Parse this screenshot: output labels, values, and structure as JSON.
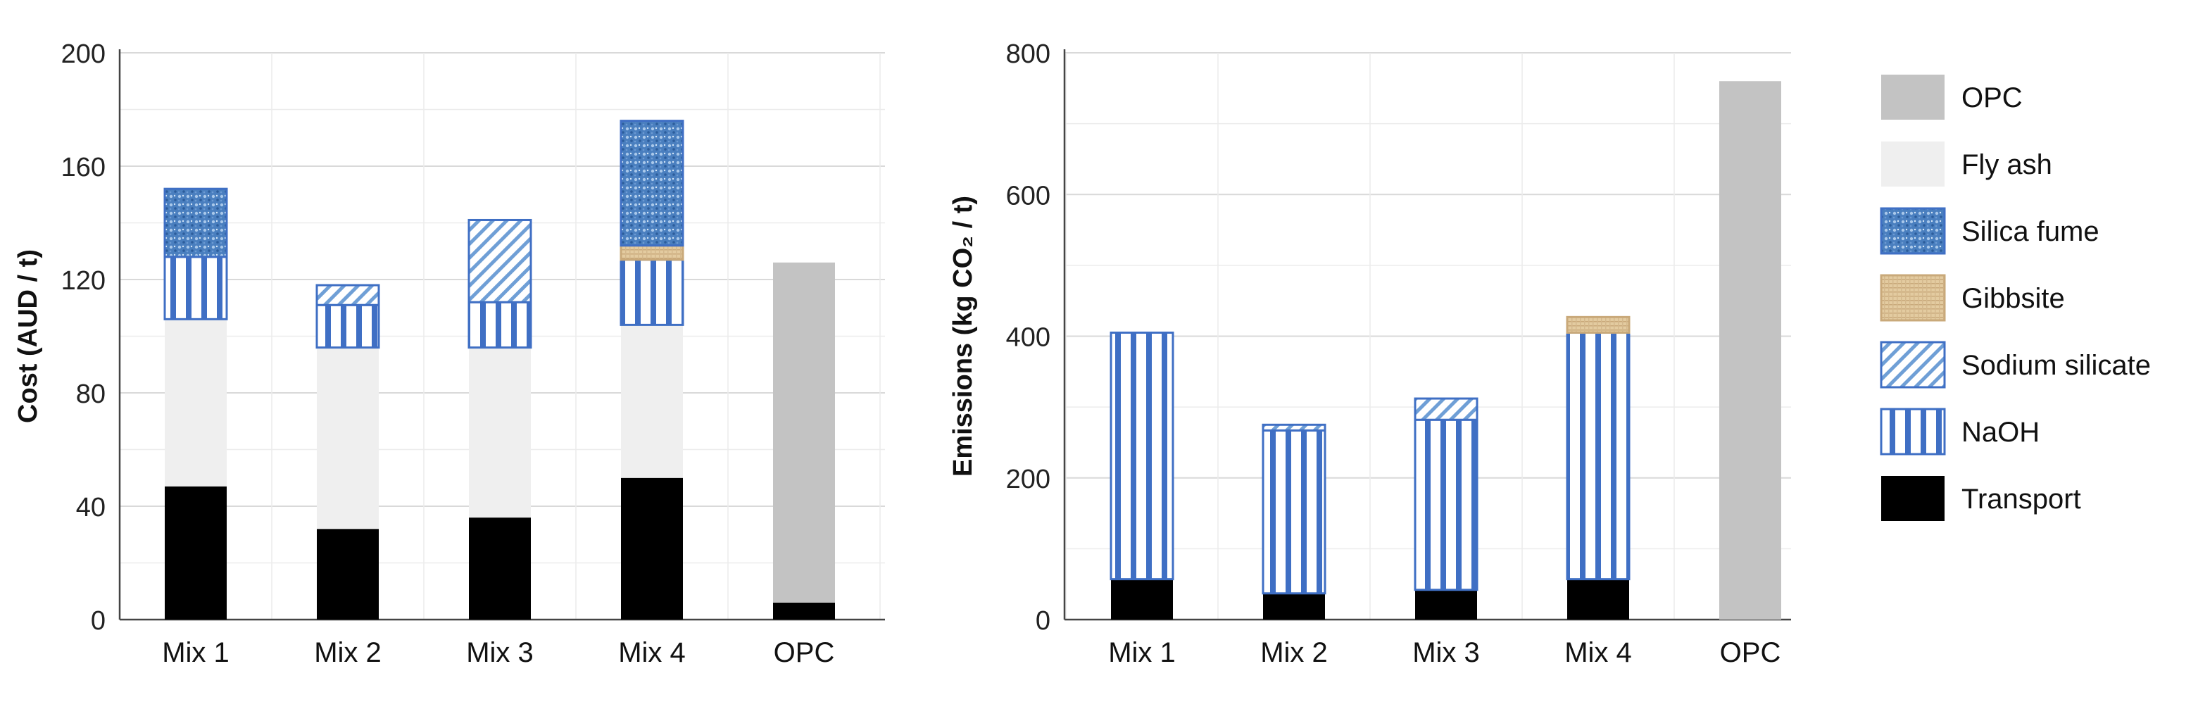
{
  "legend": {
    "items": [
      {
        "key": "opc",
        "label": "OPC",
        "pattern": "opc"
      },
      {
        "key": "fly_ash",
        "label": "Fly ash",
        "pattern": "flyash"
      },
      {
        "key": "silica_fume",
        "label": "Silica fume",
        "pattern": "silica"
      },
      {
        "key": "gibbsite",
        "label": "Gibbsite",
        "pattern": "gibbsite"
      },
      {
        "key": "sodium_silicate",
        "label": "Sodium silicate",
        "pattern": "sodsil"
      },
      {
        "key": "naoh",
        "label": "NaOH",
        "pattern": "naoh"
      },
      {
        "key": "transport",
        "label": "Transport",
        "pattern": "transport"
      }
    ]
  },
  "colors": {
    "opc": "#c3c3c3",
    "fly_ash": "#efefef",
    "silica_fume": "#4a7fbf",
    "gibbsite": "#e0c79a",
    "sodium_silicate": "#6f9fd6",
    "naoh": "#3f6fc4",
    "transport": "#000000",
    "grid": "#d9d9d9"
  },
  "chart_data": [
    {
      "type": "bar",
      "stacked": true,
      "title": "",
      "xlabel": "",
      "ylabel": "Cost (AUD / t)",
      "ylim": [
        0,
        200
      ],
      "yticks": [
        "0",
        "40",
        "80",
        "120",
        "160",
        "200"
      ],
      "categories": [
        "Mix 1",
        "Mix 2",
        "Mix 3",
        "Mix 4",
        "OPC"
      ],
      "series": [
        {
          "name": "Transport",
          "key": "transport",
          "values": [
            47,
            32,
            36,
            50,
            6
          ]
        },
        {
          "name": "Fly ash",
          "key": "fly_ash",
          "values": [
            59,
            64,
            60,
            54,
            0
          ]
        },
        {
          "name": "NaOH",
          "key": "naoh",
          "values": [
            22,
            15,
            16,
            23,
            0
          ]
        },
        {
          "name": "Sodium silicate",
          "key": "sodium_silicate",
          "values": [
            0,
            7,
            29,
            0,
            0
          ]
        },
        {
          "name": "Gibbsite",
          "key": "gibbsite",
          "values": [
            0,
            0,
            0,
            5,
            0
          ]
        },
        {
          "name": "Silica fume",
          "key": "silica_fume",
          "values": [
            24,
            0,
            0,
            44,
            0
          ]
        },
        {
          "name": "OPC",
          "key": "opc",
          "values": [
            0,
            0,
            0,
            0,
            120
          ]
        }
      ]
    },
    {
      "type": "bar",
      "stacked": true,
      "title": "",
      "xlabel": "",
      "ylabel": "Emissions (kg CO₂ / t)",
      "ylim": [
        0,
        800
      ],
      "yticks": [
        "0",
        "200",
        "400",
        "600",
        "800"
      ],
      "categories": [
        "Mix 1",
        "Mix 2",
        "Mix 3",
        "Mix 4",
        "OPC"
      ],
      "series": [
        {
          "name": "Transport",
          "key": "transport",
          "values": [
            57,
            37,
            42,
            57,
            0
          ]
        },
        {
          "name": "Fly ash",
          "key": "fly_ash",
          "values": [
            0,
            0,
            0,
            0,
            0
          ]
        },
        {
          "name": "NaOH",
          "key": "naoh",
          "values": [
            348,
            230,
            240,
            348,
            0
          ]
        },
        {
          "name": "Sodium silicate",
          "key": "sodium_silicate",
          "values": [
            0,
            8,
            30,
            0,
            0
          ]
        },
        {
          "name": "Gibbsite",
          "key": "gibbsite",
          "values": [
            0,
            0,
            0,
            22,
            0
          ]
        },
        {
          "name": "Silica fume",
          "key": "silica_fume",
          "values": [
            0,
            0,
            0,
            0,
            0
          ]
        },
        {
          "name": "OPC",
          "key": "opc",
          "values": [
            0,
            0,
            0,
            0,
            760
          ]
        }
      ]
    }
  ]
}
